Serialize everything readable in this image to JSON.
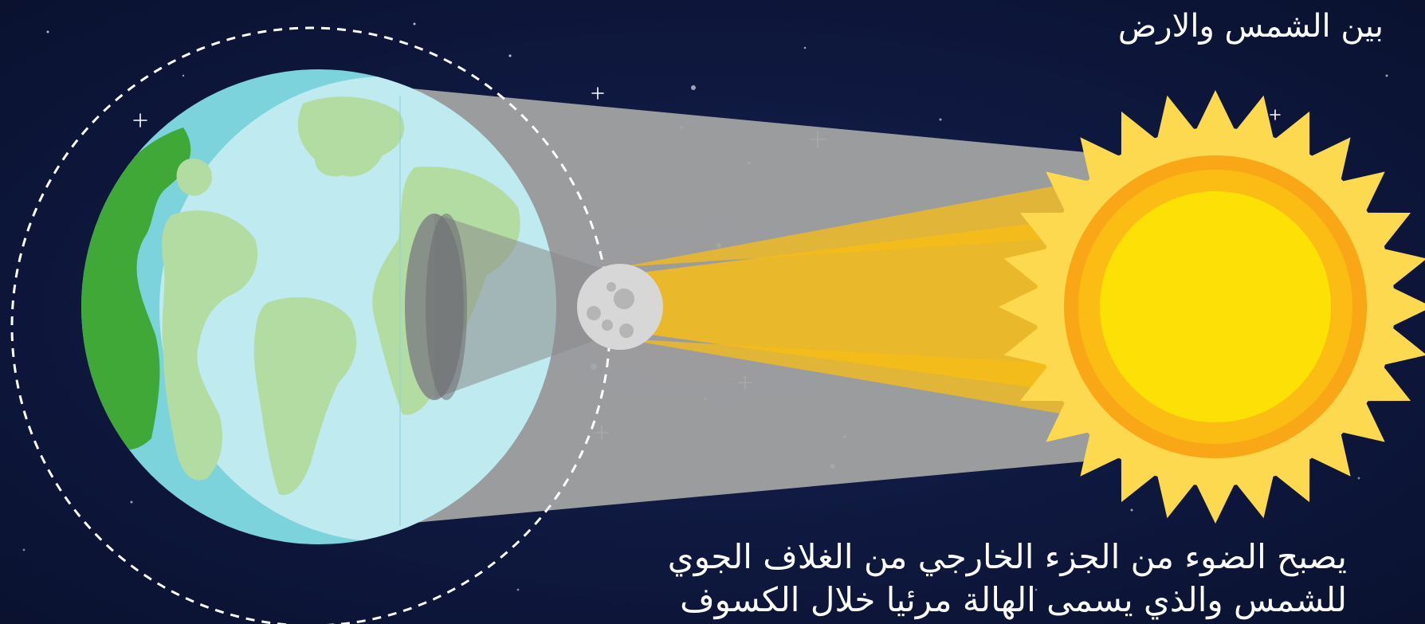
{
  "text": {
    "top_caption": "بين الشمس والارض",
    "bottom_caption_line1": "يصبح الضوء من الجزء الخارجي من الغلاف الجوي",
    "bottom_caption_line2": "للشمس والذي يسمى الهالة مرئيا خلال الكسوف"
  },
  "colors": {
    "sky": "#0b1433",
    "earth_ocean": "#bfeaf0",
    "earth_ocean_edge": "#7dd3dc",
    "earth_land_light": "#b3dca2",
    "earth_land_dark": "#3fa836",
    "sun_outer": "#fcd94f",
    "sun_ring": "#f9a716",
    "sun_core": "#fde006",
    "moon": "#d7d7d7",
    "shadow": "#a6a6a6"
  },
  "icons": [
    "earth-icon",
    "sun-icon",
    "moon-icon",
    "moon-orbit",
    "star-icon"
  ]
}
